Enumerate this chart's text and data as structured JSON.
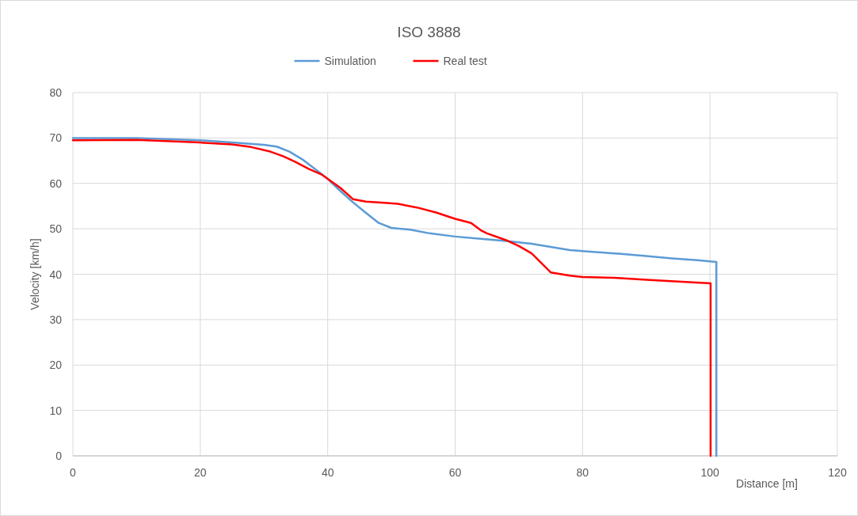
{
  "chart_data": {
    "type": "line",
    "title": "ISO 3888",
    "xlabel": "Distance [m]",
    "ylabel": "Velocity [km/h]",
    "xlim": [
      0,
      120
    ],
    "xticks": [
      0,
      20,
      40,
      60,
      80,
      100,
      120
    ],
    "ylim": [
      0,
      80
    ],
    "yticks": [
      0,
      10,
      20,
      30,
      40,
      50,
      60,
      70,
      80
    ],
    "grid": true,
    "legend": "top",
    "marker": "none",
    "line_style": "solid",
    "series": [
      {
        "name": "Simulation",
        "color": "#5b9bd5",
        "x": [
          0,
          10,
          20,
          25,
          30,
          32,
          34,
          36,
          38,
          40,
          42,
          44,
          46,
          48,
          50,
          53,
          56,
          60,
          64,
          68,
          72,
          75,
          78,
          82,
          86,
          90,
          94,
          98,
          101,
          101
        ],
        "values": [
          70,
          70,
          69.5,
          69,
          68.5,
          68.1,
          67,
          65.3,
          63.2,
          61,
          58.3,
          55.8,
          53.5,
          51.3,
          50.2,
          49.8,
          49,
          48.3,
          47.8,
          47.3,
          46.7,
          46,
          45.3,
          44.9,
          44.5,
          44,
          43.5,
          43.1,
          42.7,
          0
        ]
      },
      {
        "name": "Real test",
        "color": "#ff0000",
        "x": [
          0,
          10,
          20,
          25,
          28,
          31,
          33,
          35,
          37,
          39,
          40,
          42,
          44,
          46,
          48,
          51,
          54,
          57,
          60,
          62.5,
          64,
          65,
          68,
          70,
          72,
          73.5,
          75,
          78,
          80,
          85,
          90,
          95,
          100.1,
          100.1
        ],
        "values": [
          69.5,
          69.6,
          69,
          68.6,
          68,
          67,
          66,
          64.7,
          63.2,
          62,
          61,
          59,
          56.5,
          56,
          55.8,
          55.5,
          54.7,
          53.6,
          52.2,
          51.3,
          49.7,
          49,
          47.5,
          46.2,
          44.6,
          42.5,
          40.4,
          39.7,
          39.4,
          39.2,
          38.8,
          38.4,
          38,
          0
        ]
      }
    ]
  }
}
